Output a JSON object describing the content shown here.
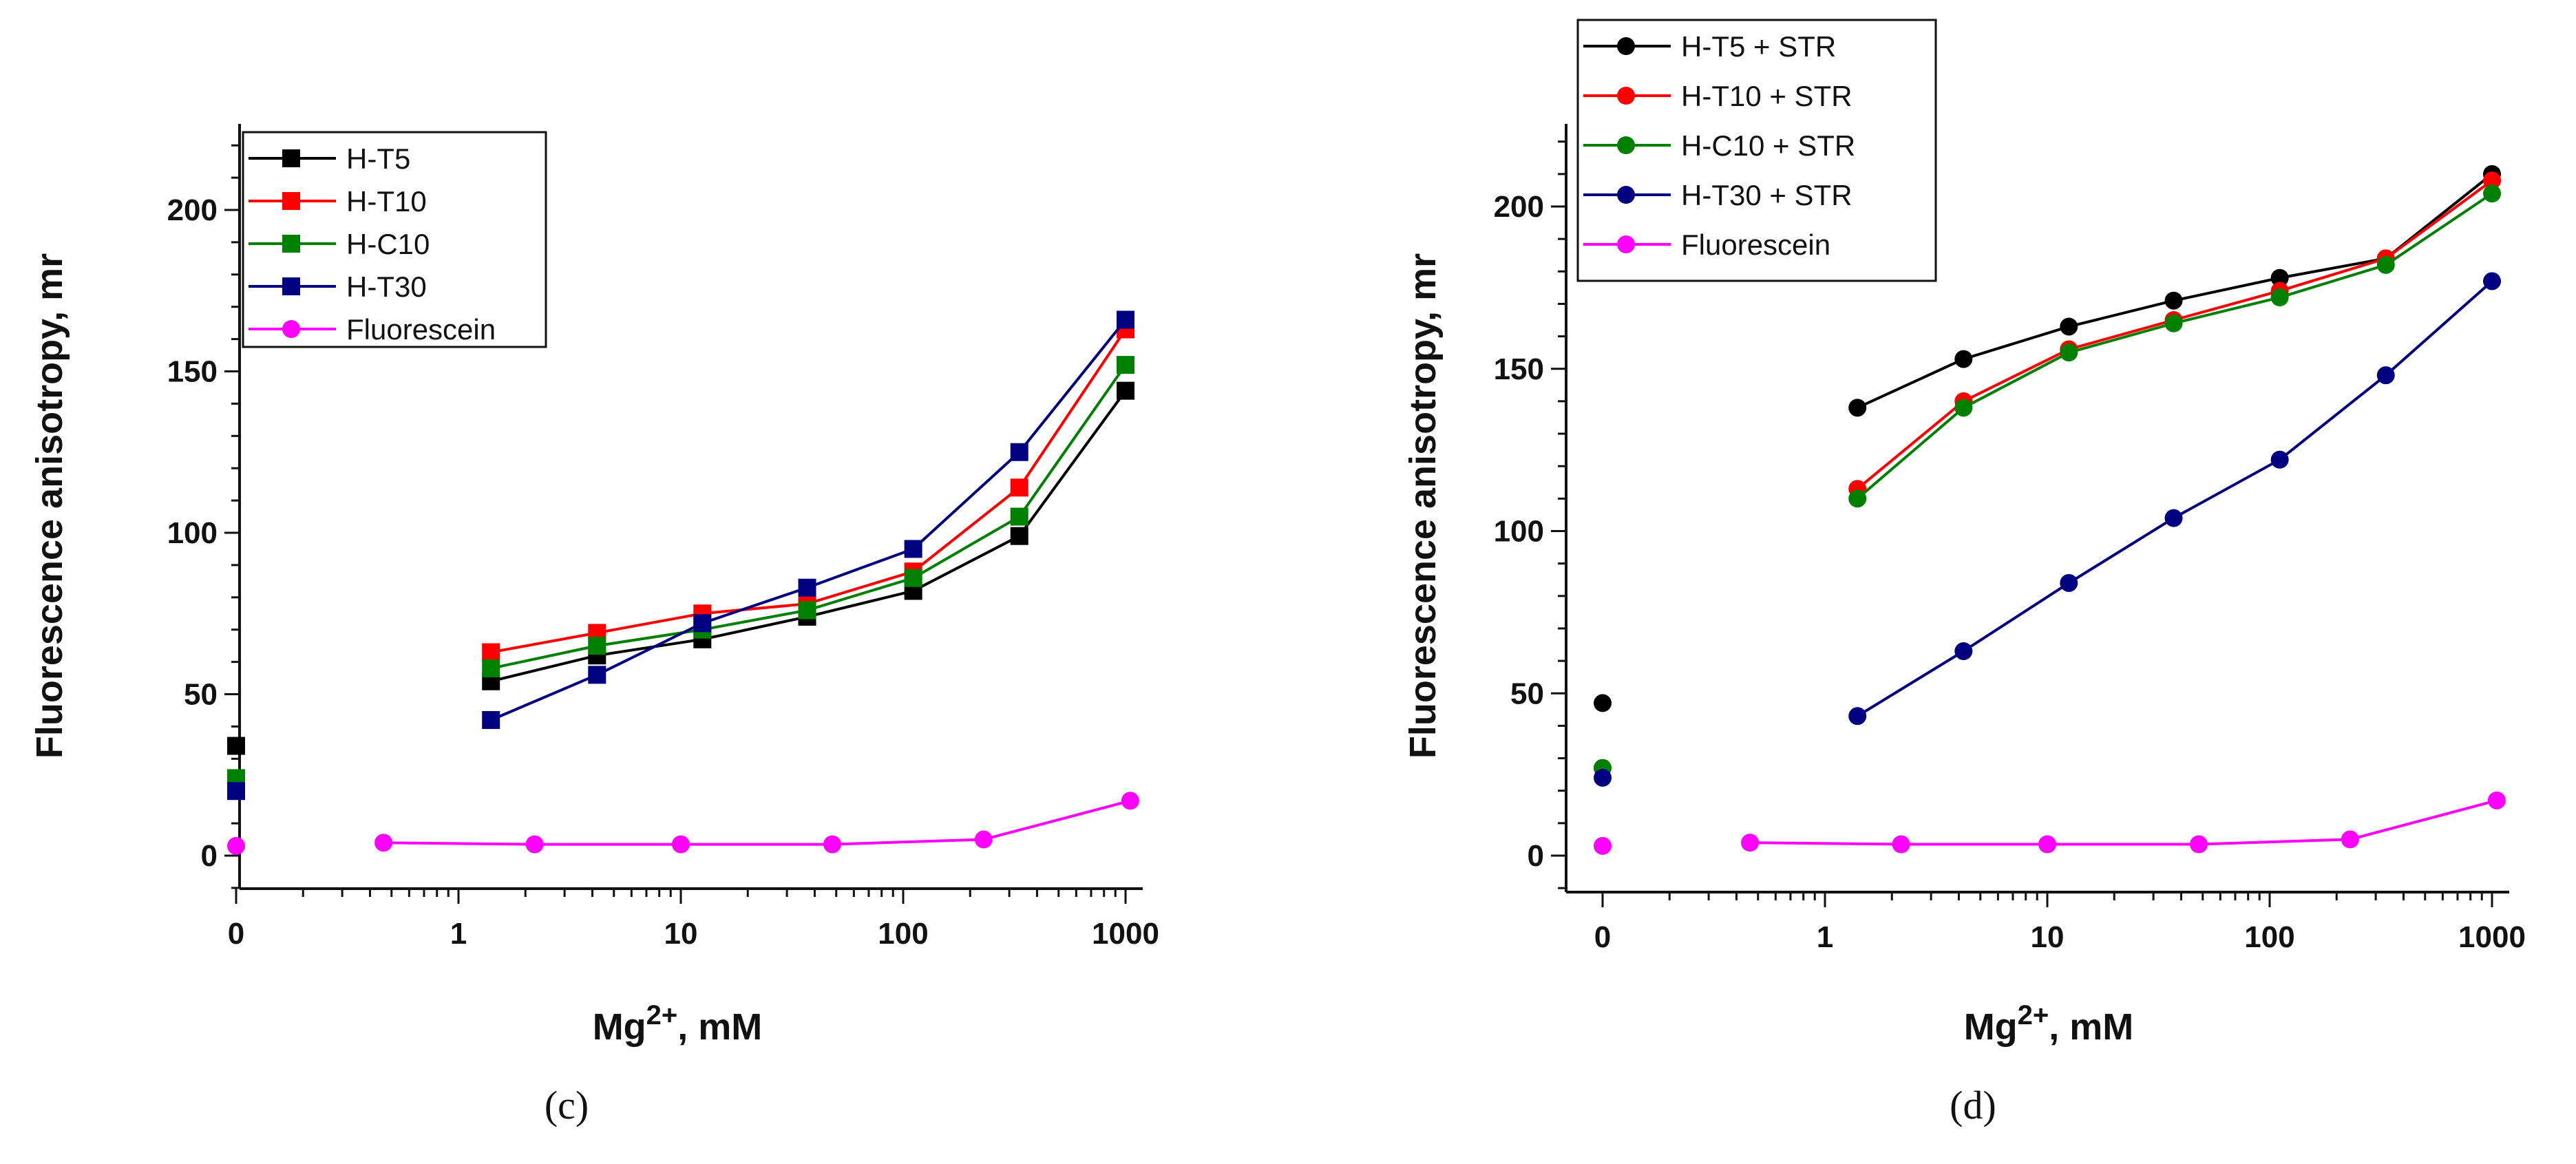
{
  "chart_data": [
    {
      "type": "line",
      "panel_label": "(c)",
      "xlabel": "Mg2+, mM",
      "xlabel_parts": [
        "Mg",
        "2+",
        ", mM"
      ],
      "ylabel": "Fluorescence anisotropy, mr",
      "xscale": "log with zero point",
      "xticks": [
        "0",
        "1",
        "10",
        "100",
        "1000"
      ],
      "yticks": [
        "0",
        "50",
        "100",
        "150",
        "200"
      ],
      "ylim": [
        -10,
        226
      ],
      "legend_position": "top-left",
      "series": [
        {
          "name": "H-T5",
          "color": "#000000",
          "marker": "square",
          "zero_value": 34,
          "x": [
            1.4,
            4.2,
            12.5,
            37,
            111,
            333,
            1000
          ],
          "values": [
            54,
            62,
            67,
            74,
            82,
            99,
            144
          ]
        },
        {
          "name": "H-T10",
          "color": "#ff0000",
          "marker": "square",
          "zero_value": 22,
          "x": [
            1.4,
            4.2,
            12.5,
            37,
            111,
            333,
            1000
          ],
          "values": [
            63,
            69,
            75,
            78,
            88,
            114,
            163
          ]
        },
        {
          "name": "H-C10",
          "color": "#008000",
          "marker": "square",
          "zero_value": 24,
          "x": [
            1.4,
            4.2,
            12.5,
            37,
            111,
            333,
            1000
          ],
          "values": [
            58,
            65,
            70,
            76,
            86,
            105,
            152
          ]
        },
        {
          "name": "H-T30",
          "color": "#000080",
          "marker": "square",
          "zero_value": 20,
          "x": [
            1.4,
            4.2,
            12.5,
            37,
            111,
            333,
            1000
          ],
          "values": [
            42,
            56,
            72,
            83,
            95,
            125,
            166
          ]
        },
        {
          "name": "Fluorescein",
          "color": "#ff00ff",
          "marker": "circle",
          "zero_value": 3,
          "x": [
            0.46,
            2.2,
            10,
            48,
            230,
            1050
          ],
          "values": [
            4,
            3.5,
            3.5,
            3.5,
            5,
            17
          ]
        }
      ]
    },
    {
      "type": "line",
      "panel_label": "(d)",
      "xlabel": "Mg2+, mM",
      "xlabel_parts": [
        "Mg",
        "2+",
        ", mM"
      ],
      "ylabel": "Fluorescence anisotropy, mr",
      "xscale": "log with zero point",
      "xticks": [
        "0",
        "1",
        "10",
        "100",
        "1000"
      ],
      "yticks": [
        "0",
        "50",
        "100",
        "150",
        "200"
      ],
      "ylim": [
        -10,
        226
      ],
      "legend_position": "top-left (above plot)",
      "series": [
        {
          "name": "H-T5 + STR",
          "color": "#000000",
          "marker": "circle",
          "zero_value": 47,
          "x": [
            1.4,
            4.2,
            12.5,
            37,
            111,
            333,
            1000
          ],
          "values": [
            138,
            153,
            163,
            171,
            178,
            184,
            210
          ]
        },
        {
          "name": "H-T10 + STR",
          "color": "#ff0000",
          "marker": "circle",
          "zero_value": 27,
          "x": [
            1.4,
            4.2,
            12.5,
            37,
            111,
            333,
            1000
          ],
          "values": [
            113,
            140,
            156,
            165,
            174,
            184,
            208
          ]
        },
        {
          "name": "H-C10 + STR",
          "color": "#008000",
          "marker": "circle",
          "zero_value": 27,
          "x": [
            1.4,
            4.2,
            12.5,
            37,
            111,
            333,
            1000
          ],
          "values": [
            110,
            138,
            155,
            164,
            172,
            182,
            204
          ]
        },
        {
          "name": "H-T30 + STR",
          "color": "#000080",
          "marker": "circle",
          "zero_value": 24,
          "x": [
            1.4,
            4.2,
            12.5,
            37,
            111,
            333,
            1000
          ],
          "values": [
            43,
            63,
            84,
            104,
            122,
            148,
            177
          ]
        },
        {
          "name": "Fluorescein",
          "color": "#ff00ff",
          "marker": "circle",
          "zero_value": 3,
          "x": [
            0.46,
            2.2,
            10,
            48,
            230,
            1050
          ],
          "values": [
            4,
            3.5,
            3.5,
            3.5,
            5,
            17
          ]
        }
      ]
    }
  ]
}
